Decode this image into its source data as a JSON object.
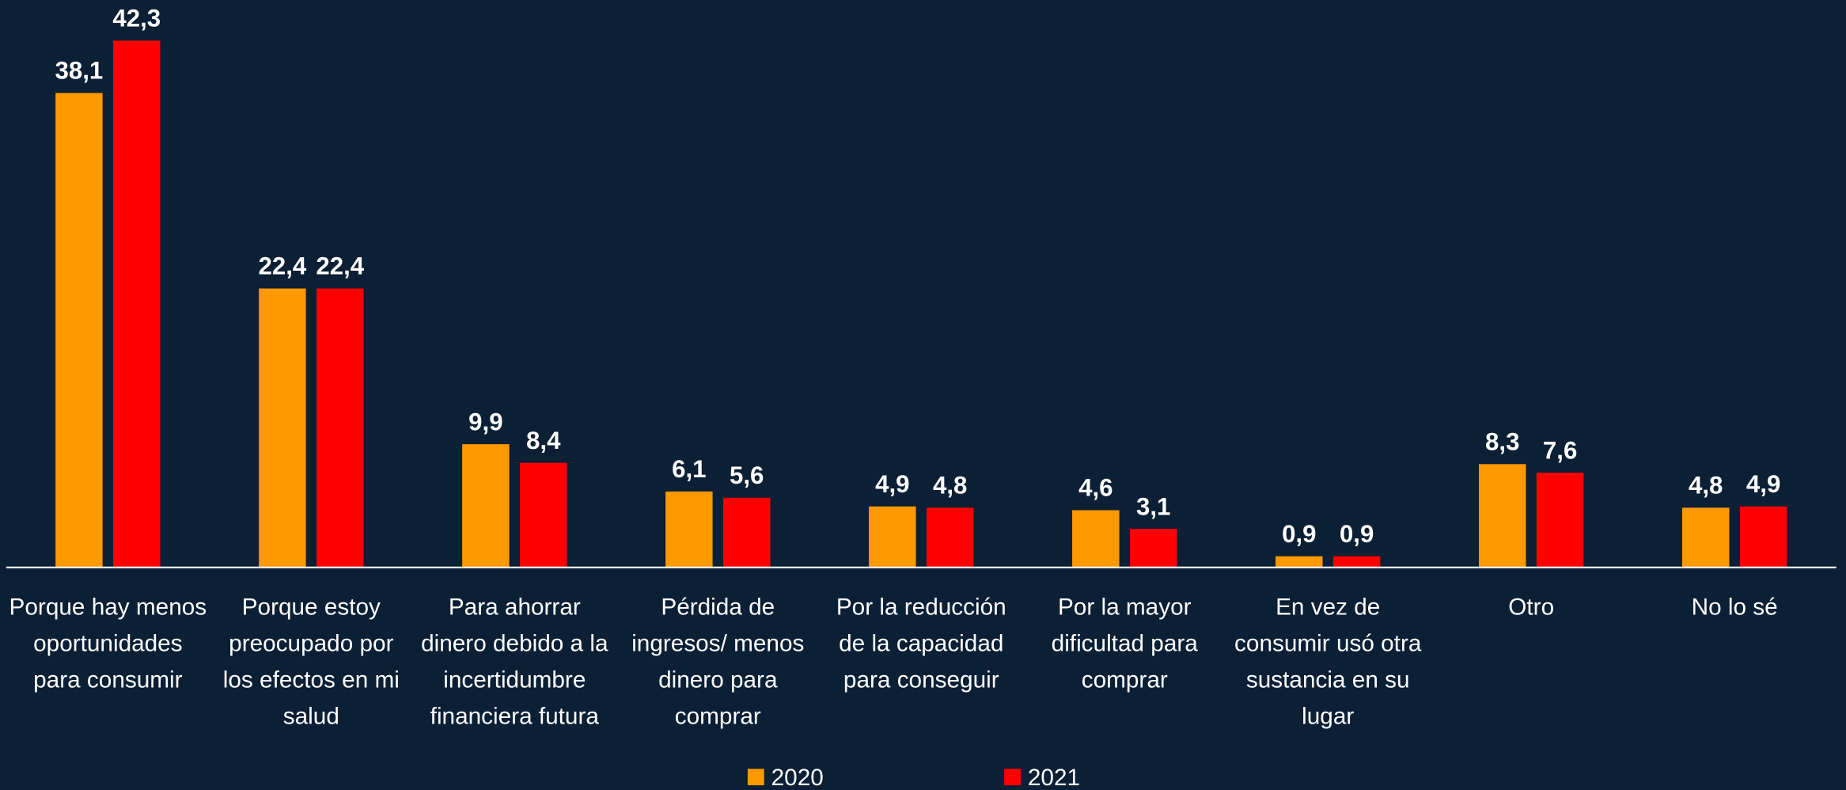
{
  "chart_data": {
    "type": "bar",
    "categories": [
      "Porque hay menos oportunidades para consumir",
      "Porque estoy preocupado por los efectos en mi salud",
      "Para ahorrar dinero debido a la incertidumbre financiera futura",
      "Pérdida de ingresos/ menos dinero para comprar",
      "Por la reducción de la capacidad para conseguir",
      "Por la mayor dificultad para comprar",
      "En vez de consumir usó otra sustancia en su lugar",
      "Otro",
      "No lo sé"
    ],
    "series": [
      {
        "name": "2020",
        "color": "#ff9900",
        "values": [
          38.1,
          22.4,
          9.9,
          6.1,
          4.9,
          4.6,
          0.9,
          8.3,
          4.8
        ],
        "value_labels": [
          "38,1",
          "22,4",
          "9,9",
          "6,1",
          "4,9",
          "4,6",
          "0,9",
          "8,3",
          "4,8"
        ]
      },
      {
        "name": "2021",
        "color": "#ff0000",
        "values": [
          42.3,
          22.4,
          8.4,
          5.6,
          4.8,
          3.1,
          0.9,
          7.6,
          4.9
        ],
        "value_labels": [
          "42,3",
          "22,4",
          "8,4",
          "5,6",
          "4,8",
          "3,1",
          "0,9",
          "7,6",
          "4,9"
        ]
      }
    ],
    "ylim": [
      0,
      45
    ],
    "legend": "bottom"
  }
}
